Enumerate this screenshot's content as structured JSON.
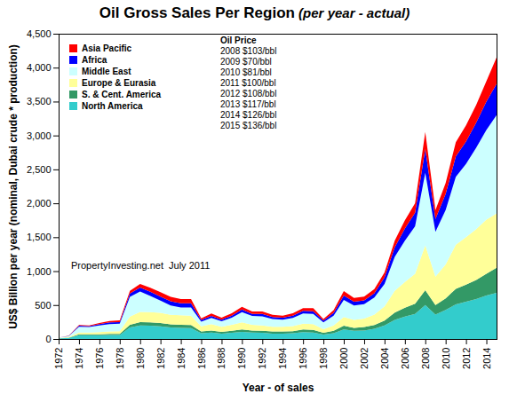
{
  "chart_data": {
    "type": "area",
    "title": "Oil Gross Sales Per Region",
    "subtitle": "(per year - actual)",
    "x_label": "Year - of sales",
    "y_label": "US$ Billion per year (nominal, Dubai crude * production)",
    "stacked": true,
    "grid": false,
    "legend": "top-left",
    "annotations": {
      "oil_price": {
        "heading": "Oil Price",
        "lines": [
          "2008 $103/bbl",
          "2009 $70/bbl",
          "2010 $81/bbl",
          "2011 $100/bbl",
          "2012 $108/bbl",
          "2013 $117/bbl",
          "2014 $126/bbl",
          "2015 $136/bbl"
        ]
      },
      "source": "PropertyInvesting.net  July 2011"
    },
    "x": [
      1972,
      1973,
      1974,
      1975,
      1976,
      1977,
      1978,
      1979,
      1980,
      1981,
      1982,
      1983,
      1984,
      1985,
      1986,
      1987,
      1988,
      1989,
      1990,
      1991,
      1992,
      1993,
      1994,
      1995,
      1996,
      1997,
      1998,
      1999,
      2000,
      2001,
      2002,
      2003,
      2004,
      2005,
      2006,
      2007,
      2008,
      2009,
      2010,
      2011,
      2012,
      2013,
      2014,
      2015
    ],
    "xlim": [
      1972,
      2015
    ],
    "xticks": [
      1972,
      1974,
      1976,
      1978,
      1980,
      1982,
      1984,
      1986,
      1988,
      1990,
      1992,
      1994,
      1996,
      1998,
      2000,
      2002,
      2004,
      2006,
      2008,
      2010,
      2012,
      2014
    ],
    "ylim": [
      0,
      4500
    ],
    "yticks": [
      0,
      500,
      {
        "value": 1000,
        "label": "1,000"
      },
      {
        "value": 1500,
        "label": "1,500"
      },
      {
        "value": 2000,
        "label": "2,000"
      },
      {
        "value": 2500,
        "label": "2,500"
      },
      {
        "value": 3000,
        "label": "3,000"
      },
      {
        "value": 3500,
        "label": "3,500"
      },
      {
        "value": 4000,
        "label": "4,000"
      },
      {
        "value": 4500,
        "label": "4,500"
      }
    ],
    "series": [
      {
        "name": "North America",
        "color": "#33cccc",
        "values": [
          8,
          15,
          55,
          55,
          55,
          60,
          60,
          170,
          200,
          195,
          185,
          170,
          165,
          160,
          85,
          95,
          80,
          90,
          105,
          95,
          90,
          80,
          80,
          85,
          100,
          95,
          65,
          85,
          140,
          120,
          125,
          150,
          200,
          280,
          330,
          370,
          500,
          360,
          430,
          510,
          550,
          590,
          640,
          680
        ]
      },
      {
        "name": "S. & Cent. America",
        "color": "#339966",
        "values": [
          3,
          5,
          15,
          15,
          15,
          15,
          15,
          40,
          50,
          50,
          50,
          45,
          45,
          45,
          25,
          30,
          25,
          30,
          35,
          30,
          30,
          30,
          30,
          30,
          40,
          40,
          25,
          35,
          55,
          45,
          50,
          55,
          70,
          110,
          130,
          150,
          220,
          140,
          170,
          230,
          250,
          280,
          320,
          370
        ]
      },
      {
        "name": "Europe & Eurasia",
        "color": "#ffff99",
        "values": [
          3,
          8,
          25,
          25,
          30,
          35,
          40,
          120,
          150,
          150,
          150,
          140,
          140,
          140,
          75,
          95,
          75,
          90,
          105,
          85,
          80,
          70,
          70,
          75,
          85,
          85,
          55,
          80,
          130,
          115,
          125,
          155,
          210,
          320,
          380,
          440,
          660,
          420,
          500,
          650,
          700,
          750,
          800,
          800
        ]
      },
      {
        "name": "Middle East",
        "color": "#ccffff",
        "values": [
          4,
          15,
          85,
          80,
          100,
          110,
          110,
          290,
          300,
          240,
          180,
          140,
          115,
          120,
          70,
          90,
          80,
          105,
          150,
          130,
          135,
          115,
          105,
          120,
          150,
          150,
          100,
          145,
          250,
          215,
          215,
          250,
          330,
          500,
          610,
          700,
          1070,
          660,
          800,
          1000,
          1080,
          1200,
          1320,
          1450
        ]
      },
      {
        "name": "Africa",
        "color": "#0000ff",
        "values": [
          1,
          4,
          15,
          15,
          20,
          25,
          25,
          50,
          60,
          60,
          60,
          60,
          60,
          60,
          25,
          30,
          25,
          30,
          40,
          30,
          35,
          30,
          30,
          35,
          40,
          40,
          25,
          40,
          65,
          55,
          55,
          65,
          100,
          140,
          180,
          200,
          350,
          190,
          240,
          300,
          330,
          370,
          420,
          460
        ]
      },
      {
        "name": "Asia Pacific",
        "color": "#ff0000",
        "values": [
          1,
          3,
          10,
          10,
          15,
          20,
          25,
          40,
          50,
          60,
          65,
          65,
          65,
          65,
          25,
          35,
          30,
          35,
          40,
          35,
          35,
          30,
          30,
          35,
          40,
          45,
          25,
          40,
          65,
          55,
          55,
          60,
          70,
          100,
          120,
          140,
          250,
          130,
          160,
          210,
          240,
          260,
          300,
          390
        ]
      }
    ]
  }
}
